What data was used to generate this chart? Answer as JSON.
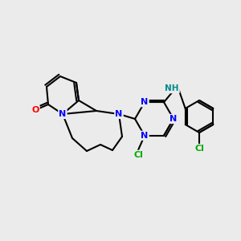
{
  "bg_color": "#ebebeb",
  "atom_colors": {
    "N": "#0000ff",
    "O": "#ff0000",
    "Cl": "#00aa00",
    "NH": "#008b8b",
    "C": "#000000"
  },
  "figsize": [
    3.0,
    3.0
  ],
  "dpi": 100
}
